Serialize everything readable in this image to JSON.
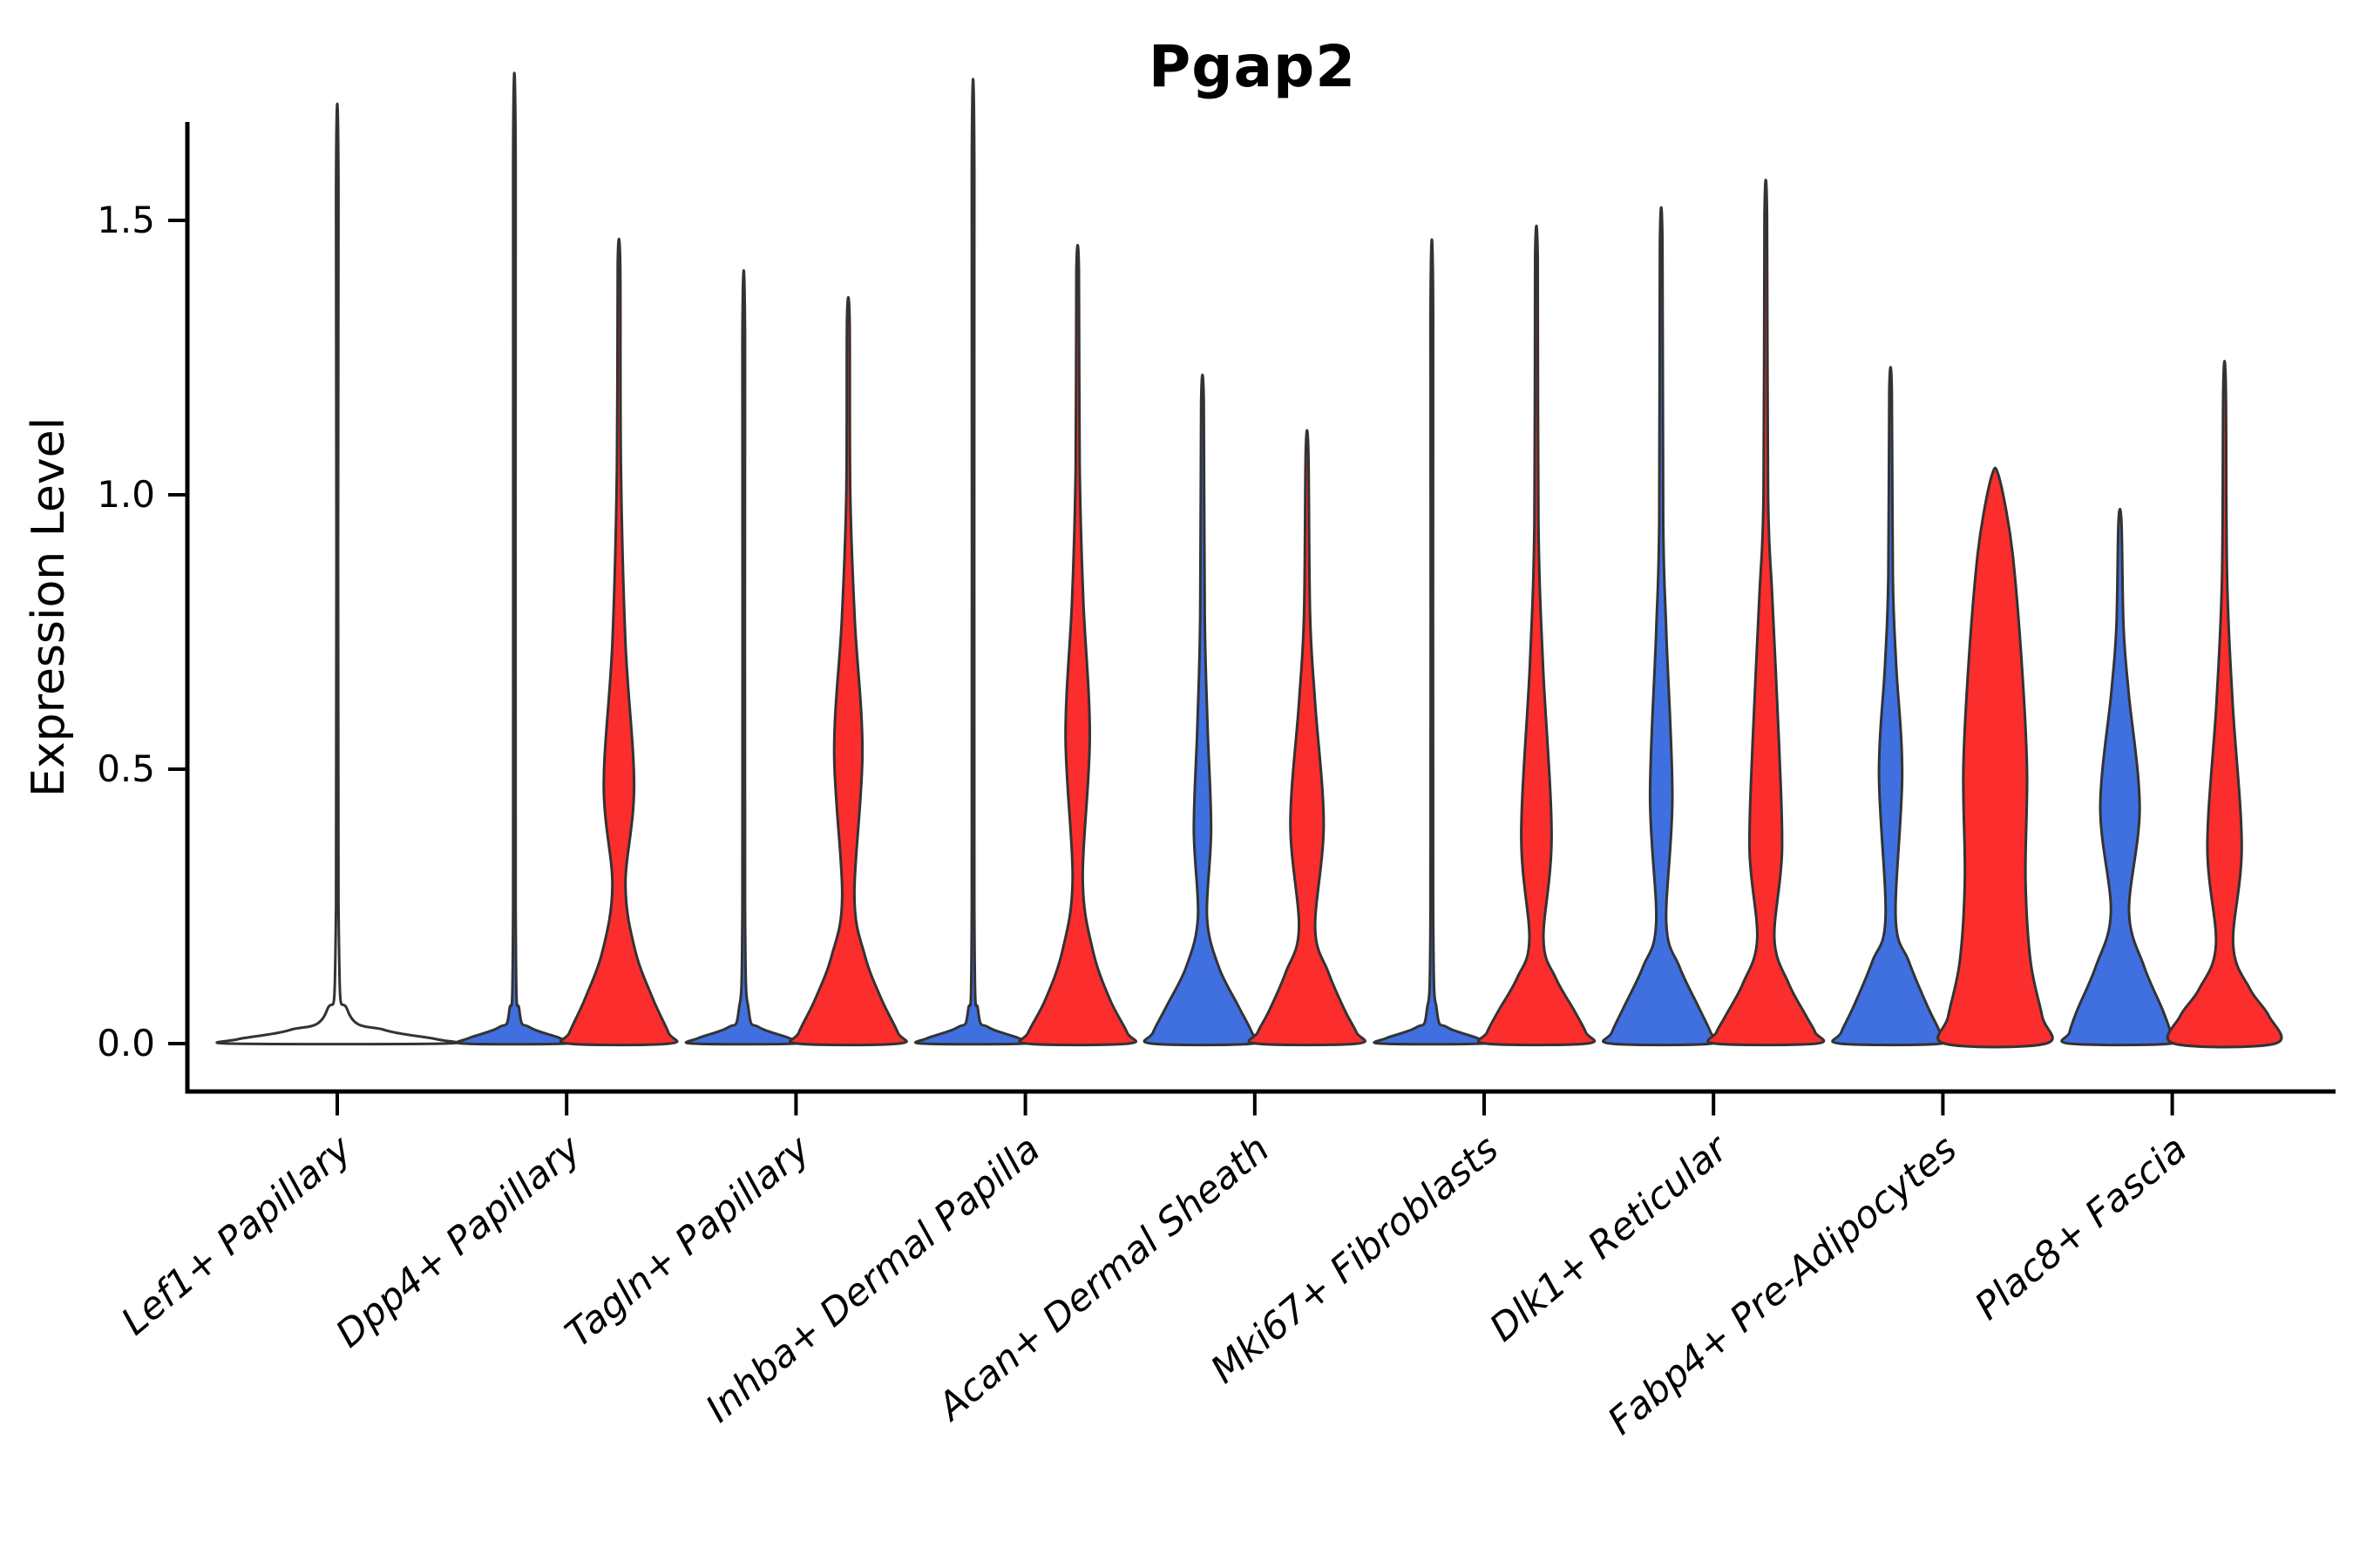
{
  "title": "Pgap2",
  "ylabel": "Expression Level",
  "colors": {
    "split_blue": "#4070DF",
    "split_red": "#FB2D2D",
    "violin_outline": "#333333",
    "axis": "#000000",
    "background": "#ffffff"
  },
  "chart_data": {
    "type": "violin",
    "title": "Pgap2",
    "ylabel": "Expression Level",
    "xlabel": "",
    "ylim": [
      0,
      1.68
    ],
    "yticks": [
      0.0,
      0.5,
      1.0,
      1.5
    ],
    "grid": false,
    "legend": "none",
    "categories": [
      "Lef1+ Papillary",
      "Dpp4+ Papillary",
      "Tagln+ Papillary",
      "Inhba+ Dermal Papilla",
      "Acan+ Dermal Sheath",
      "Mki67+ Fibroblasts",
      "Dlk1+ Reticular",
      "Fabp4+ Pre-Adipocytes",
      "Plac8+ Fascia"
    ],
    "groups": [
      {
        "category": "Lef1+ Papillary",
        "violins": [
          {
            "side": "single",
            "color": null,
            "max_expression": 1.55,
            "profile": [
              [
                1.55,
                0.012
              ],
              [
                0.25,
                0.012
              ],
              [
                0.06,
                0.1
              ],
              [
                0.025,
                0.45
              ],
              [
                0.008,
                0.95
              ],
              [
                0,
                1.0
              ]
            ]
          }
        ]
      },
      {
        "category": "Dpp4+ Papillary",
        "violins": [
          {
            "side": "left",
            "color": "split_blue",
            "max_expression": 1.6,
            "profile": [
              [
                1.6,
                0.025
              ],
              [
                0.25,
                0.025
              ],
              [
                0.06,
                0.1
              ],
              [
                0.03,
                0.3
              ],
              [
                0.01,
                0.9
              ],
              [
                0,
                1.0
              ]
            ]
          },
          {
            "side": "right",
            "color": "split_red",
            "max_expression": 1.42,
            "profile": [
              [
                1.42,
                0.025
              ],
              [
                1.05,
                0.04
              ],
              [
                0.73,
                0.13
              ],
              [
                0.47,
                0.3
              ],
              [
                0.29,
                0.13
              ],
              [
                0.17,
                0.32
              ],
              [
                0.08,
                0.68
              ],
              [
                0.02,
                0.98
              ],
              [
                0,
                1.0
              ]
            ]
          }
        ]
      },
      {
        "category": "Tagln+ Papillary",
        "violins": [
          {
            "side": "left",
            "color": "split_blue",
            "max_expression": 1.28,
            "profile": [
              [
                1.28,
                0.025
              ],
              [
                0.25,
                0.025
              ],
              [
                0.06,
                0.1
              ],
              [
                0.03,
                0.3
              ],
              [
                0.01,
                0.9
              ],
              [
                0,
                1.0
              ]
            ]
          },
          {
            "side": "right",
            "color": "split_red",
            "max_expression": 1.32,
            "profile": [
              [
                1.32,
                0.025
              ],
              [
                1.0,
                0.04
              ],
              [
                0.77,
                0.13
              ],
              [
                0.53,
                0.28
              ],
              [
                0.27,
                0.12
              ],
              [
                0.16,
                0.33
              ],
              [
                0.08,
                0.66
              ],
              [
                0.02,
                0.98
              ],
              [
                0,
                1.0
              ]
            ]
          }
        ]
      },
      {
        "category": "Inhba+ Dermal Papilla",
        "violins": [
          {
            "side": "left",
            "color": "split_blue",
            "max_expression": 1.59,
            "profile": [
              [
                1.59,
                0.025
              ],
              [
                0.25,
                0.025
              ],
              [
                0.06,
                0.1
              ],
              [
                0.03,
                0.3
              ],
              [
                0.01,
                0.9
              ],
              [
                0,
                1.0
              ]
            ]
          },
          {
            "side": "right",
            "color": "split_red",
            "max_expression": 1.41,
            "profile": [
              [
                1.41,
                0.025
              ],
              [
                1.05,
                0.04
              ],
              [
                0.81,
                0.11
              ],
              [
                0.56,
                0.24
              ],
              [
                0.3,
                0.1
              ],
              [
                0.17,
                0.3
              ],
              [
                0.08,
                0.64
              ],
              [
                0.02,
                0.98
              ],
              [
                0,
                1.0
              ]
            ]
          }
        ]
      },
      {
        "category": "Acan+ Dermal Sheath",
        "violins": [
          {
            "side": "left",
            "color": "split_blue",
            "max_expression": 1.17,
            "profile": [
              [
                1.17,
                0.025
              ],
              [
                0.78,
                0.045
              ],
              [
                0.58,
                0.1
              ],
              [
                0.39,
                0.17
              ],
              [
                0.23,
                0.09
              ],
              [
                0.14,
                0.32
              ],
              [
                0.07,
                0.7
              ],
              [
                0.02,
                0.98
              ],
              [
                0,
                1.0
              ]
            ]
          },
          {
            "side": "right",
            "color": "split_red",
            "max_expression": 1.08,
            "profile": [
              [
                1.08,
                0.025
              ],
              [
                0.78,
                0.06
              ],
              [
                0.62,
                0.16
              ],
              [
                0.4,
                0.33
              ],
              [
                0.21,
                0.16
              ],
              [
                0.13,
                0.42
              ],
              [
                0.06,
                0.75
              ],
              [
                0.02,
                0.98
              ],
              [
                0,
                1.0
              ]
            ]
          }
        ]
      },
      {
        "category": "Mki67+ Fibroblasts",
        "violins": [
          {
            "side": "left",
            "color": "split_blue",
            "max_expression": 1.33,
            "profile": [
              [
                1.33,
                0.025
              ],
              [
                0.25,
                0.025
              ],
              [
                0.06,
                0.1
              ],
              [
                0.03,
                0.3
              ],
              [
                0.01,
                0.9
              ],
              [
                0,
                1.0
              ]
            ]
          },
          {
            "side": "right",
            "color": "split_red",
            "max_expression": 1.43,
            "profile": [
              [
                1.43,
                0.025
              ],
              [
                0.95,
                0.04
              ],
              [
                0.69,
                0.13
              ],
              [
                0.38,
                0.3
              ],
              [
                0.19,
                0.14
              ],
              [
                0.12,
                0.38
              ],
              [
                0.06,
                0.75
              ],
              [
                0.02,
                0.98
              ],
              [
                0,
                1.0
              ]
            ]
          }
        ]
      },
      {
        "category": "Dlk1+ Reticular",
        "violins": [
          {
            "side": "left",
            "color": "split_blue",
            "max_expression": 1.46,
            "profile": [
              [
                1.46,
                0.025
              ],
              [
                0.95,
                0.04
              ],
              [
                0.75,
                0.1
              ],
              [
                0.45,
                0.22
              ],
              [
                0.22,
                0.1
              ],
              [
                0.14,
                0.36
              ],
              [
                0.07,
                0.72
              ],
              [
                0.02,
                0.98
              ],
              [
                0,
                1.0
              ]
            ]
          },
          {
            "side": "right",
            "color": "split_red",
            "max_expression": 1.51,
            "profile": [
              [
                1.51,
                0.025
              ],
              [
                1.0,
                0.045
              ],
              [
                0.81,
                0.13
              ],
              [
                0.55,
                0.26
              ],
              [
                0.35,
                0.32
              ],
              [
                0.19,
                0.17
              ],
              [
                0.11,
                0.45
              ],
              [
                0.05,
                0.8
              ],
              [
                0.02,
                0.98
              ],
              [
                0,
                1.0
              ]
            ]
          }
        ]
      },
      {
        "category": "Fabp4+ Pre-Adipocytes",
        "violins": [
          {
            "side": "left",
            "color": "split_blue",
            "max_expression": 1.19,
            "profile": [
              [
                1.19,
                0.025
              ],
              [
                0.85,
                0.045
              ],
              [
                0.69,
                0.11
              ],
              [
                0.49,
                0.23
              ],
              [
                0.23,
                0.1
              ],
              [
                0.15,
                0.36
              ],
              [
                0.07,
                0.72
              ],
              [
                0.02,
                0.98
              ],
              [
                0,
                1.0
              ]
            ]
          },
          {
            "side": "right",
            "color": "split_red",
            "max_expression": 1.04,
            "profile": [
              [
                1.04,
                0.05
              ],
              [
                0.97,
                0.22
              ],
              [
                0.88,
                0.36
              ],
              [
                0.7,
                0.52
              ],
              [
                0.5,
                0.63
              ],
              [
                0.3,
                0.6
              ],
              [
                0.15,
                0.7
              ],
              [
                0.05,
                0.93
              ],
              [
                0,
                1.0
              ]
            ]
          }
        ]
      },
      {
        "category": "Plac8+ Fascia",
        "violins": [
          {
            "side": "left",
            "color": "split_blue",
            "max_expression": 0.95,
            "profile": [
              [
                0.95,
                0.03
              ],
              [
                0.76,
                0.07
              ],
              [
                0.64,
                0.17
              ],
              [
                0.43,
                0.39
              ],
              [
                0.24,
                0.18
              ],
              [
                0.14,
                0.48
              ],
              [
                0.06,
                0.85
              ],
              [
                0.02,
                1.0
              ],
              [
                0,
                1.0
              ]
            ]
          },
          {
            "side": "right",
            "color": "split_red",
            "max_expression": 1.2,
            "profile": [
              [
                1.2,
                0.025
              ],
              [
                0.85,
                0.05
              ],
              [
                0.62,
                0.16
              ],
              [
                0.36,
                0.34
              ],
              [
                0.18,
                0.17
              ],
              [
                0.1,
                0.5
              ],
              [
                0.05,
                0.88
              ],
              [
                0,
                1.0
              ]
            ]
          }
        ]
      }
    ]
  }
}
